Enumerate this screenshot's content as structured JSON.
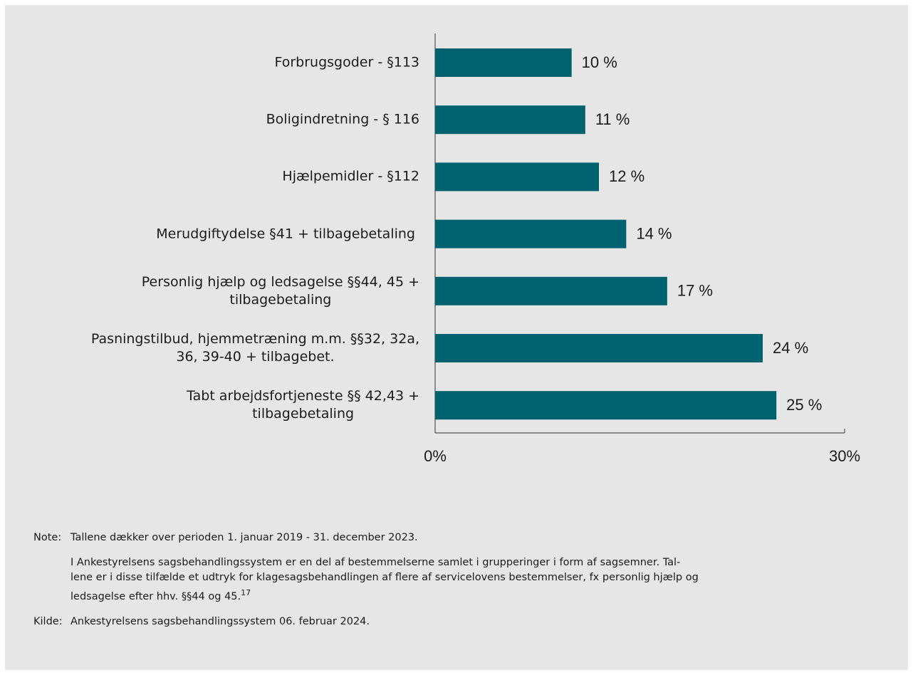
{
  "chart_data": {
    "type": "barh",
    "categories": [
      "Forbrugsgoder - §113",
      "Boligindretning - § 116",
      "Hjælpemidler - §112",
      "Merudgiftydelse §41 + tilbagebetaling ",
      "Personlig hjælp og ledsagelse §§44, 45 +\ntilbagebetaling",
      "Pasningstilbud, hjemmetræning m.m. §§32, 32a,\n36, 39-40 + tilbagebet.",
      "Tabt arbejdsfortjeneste §§ 42,43 +\ntilbagebetaling"
    ],
    "values": [
      10,
      11,
      12,
      14,
      17,
      24,
      25
    ],
    "value_labels": [
      "10 %",
      "11 %",
      "12 %",
      "14 %",
      "17 %",
      "24 %",
      "25 %"
    ],
    "color": "#00616f",
    "xlim": [
      0,
      30
    ],
    "xticks": [
      {
        "value": 0,
        "label": "0%"
      },
      {
        "value": 30,
        "label": "30%"
      }
    ]
  },
  "notes": [
    {
      "label": "Note:",
      "paragraphs": [
        {
          "lines": [
            "Tallene dækker over perioden 1. januar 2019 - 31. december 2023."
          ]
        },
        {
          "lines": [
            "I Ankestyrelsens sagsbehandlingssystem er en del af bestemmelserne samlet i grupperinger i form af sagsemner. Tal-",
            "lene er i disse tilfælde et udtryk for klagesagsbehandlingen af flere af servicelovens bestemmelser, fx personlig hjælp og",
            "ledsagelse efter hhv. §§44 og 45."
          ],
          "footnote": "17"
        }
      ]
    },
    {
      "label": "Kilde:",
      "paragraphs": [
        {
          "lines": [
            "Ankestyrelsens sagsbehandlingssystem 06. februar 2024."
          ]
        }
      ]
    }
  ]
}
